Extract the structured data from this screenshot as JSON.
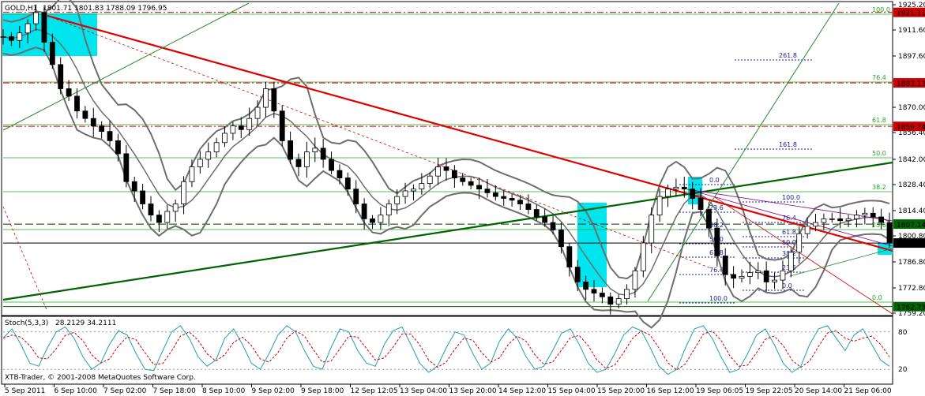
{
  "header": {
    "symbol": "GOLD,H1",
    "ohlc": "1801.71 1801.83 1788.09 1796.95"
  },
  "indicator_header": {
    "name": "Stoch(5,3,3)",
    "values": "28.2129 34.2111"
  },
  "copyright": "XTB-Trader, © 2001-2008 MetaQuotes Software Corp.",
  "colors": {
    "background": "#ffffff",
    "candle": "#000000",
    "bollinger": "#6e6e6e",
    "red_trend": "#e00000",
    "green_trend": "#006400",
    "fib_green": "#22aa22",
    "fib_blue": "#1a1aa0",
    "highlight": "#00e5ee",
    "price_label_red": "#cc0000",
    "price_label_green": "#006400",
    "price_label_black": "#000000",
    "stoch_main": "#20a0b0",
    "stoch_signal": "#cc0000"
  },
  "chart_data": {
    "type": "candlestick",
    "title": "GOLD,H1",
    "ylim": [
      1759.2,
      1925.2
    ],
    "y_ticks": [
      "1925.20",
      "1911.60",
      "1897.60",
      "1884.00",
      "1870.00",
      "1856.40",
      "1842.00",
      "1828.40",
      "1814.40",
      "1800.80",
      "1786.80",
      "1772.80",
      "1759.20"
    ],
    "x_ticks": [
      "5 Sep 2011",
      "6 Sep 10:00",
      "7 Sep 02:00",
      "7 Sep 18:00",
      "8 Sep 10:00",
      "9 Sep 02:00",
      "9 Sep 18:00",
      "12 Sep 12:05",
      "13 Sep 04:00",
      "13 Sep 20:00",
      "14 Sep 12:00",
      "15 Sep 04:00",
      "15 Sep 20:00",
      "16 Sep 12:00",
      "19 Sep 06:05",
      "19 Sep 22:05",
      "20 Sep 14:00",
      "21 Sep 06:00"
    ],
    "close_series": [
      1908,
      1906,
      1910,
      1915,
      1921,
      1905,
      1893,
      1880,
      1876,
      1868,
      1864,
      1860,
      1857,
      1852,
      1845,
      1830,
      1825,
      1818,
      1812,
      1808,
      1814,
      1818,
      1830,
      1838,
      1842,
      1846,
      1851,
      1856,
      1860,
      1858,
      1864,
      1870,
      1880,
      1868,
      1852,
      1842,
      1838,
      1846,
      1848,
      1842,
      1836,
      1832,
      1826,
      1818,
      1810,
      1808,
      1812,
      1818,
      1822,
      1825,
      1826,
      1829,
      1833,
      1838,
      1836,
      1832,
      1830,
      1828,
      1826,
      1824,
      1822,
      1821,
      1820,
      1818,
      1815,
      1811,
      1808,
      1804,
      1795,
      1784,
      1776,
      1772,
      1770,
      1768,
      1764,
      1767,
      1772,
      1782,
      1797,
      1812,
      1822,
      1826,
      1827,
      1826,
      1821,
      1815,
      1805,
      1790,
      1780,
      1778,
      1779,
      1781,
      1782,
      1776,
      1777,
      1782,
      1792,
      1802,
      1806,
      1808,
      1810,
      1810,
      1809,
      1810,
      1812,
      1813,
      1811,
      1808,
      1797
    ],
    "horizontal_levels": [
      {
        "price": "1921.11",
        "line_color": "#cc0000",
        "label": "1921.11",
        "label_color": "#cc0000"
      },
      {
        "price": "1883.13",
        "line_color": "#cc0000",
        "label": "1883.13",
        "label_color": "#cc0000"
      },
      {
        "price": "1859.74",
        "line_color": "#cc0000",
        "label": "1859.74",
        "label_color": "#cc0000"
      },
      {
        "price": "1807.14",
        "line_color": "#003300",
        "label": "1807.14",
        "label_color": "#006400"
      },
      {
        "price": "1796.95",
        "line_color": "#000000",
        "label": "1796.95",
        "label_color": "#000000"
      },
      {
        "price": "1762.73",
        "line_color": "#006400",
        "label": "1762.73",
        "label_color": "#006400"
      }
    ],
    "fib_levels_right": [
      "100.0",
      "76.4",
      "61.8",
      "50.0",
      "38.2",
      "23.6",
      "0.0"
    ],
    "fib_ext_labels": [
      "261.8",
      "161.8",
      "100.0"
    ],
    "fib_retrace_a": [
      "0.0",
      "23.6",
      "38.2",
      "50.0",
      "61.8",
      "76.4",
      "100.0"
    ],
    "fib_retrace_b": [
      "100.0",
      "76.4",
      "61.8",
      "50.0",
      "38.2",
      "23.6",
      "0.0"
    ],
    "stochastic": {
      "name": "Stoch(5,3,3)",
      "main": 28.2129,
      "signal": 34.2111,
      "levels": [
        "80",
        "20"
      ],
      "series_main": [
        70,
        85,
        60,
        30,
        25,
        55,
        80,
        88,
        70,
        40,
        20,
        30,
        60,
        82,
        75,
        45,
        20,
        18,
        50,
        80,
        90,
        70,
        40,
        25,
        35,
        70,
        85,
        60,
        30,
        20,
        45,
        75,
        90,
        80,
        50,
        25,
        20,
        55,
        85,
        80,
        50,
        30,
        25,
        60,
        82,
        88,
        60,
        30,
        15,
        25,
        55,
        80,
        75,
        45,
        20,
        30,
        65,
        85,
        70,
        40,
        20,
        25,
        50,
        78,
        85,
        60,
        30,
        15,
        20,
        45,
        75,
        88,
        82,
        55,
        25,
        12,
        20,
        55,
        85,
        90,
        70,
        40,
        15,
        20,
        45,
        75,
        85,
        60,
        30,
        15,
        25,
        60,
        85,
        90,
        70,
        50,
        75,
        85,
        60,
        35,
        25
      ]
    }
  }
}
